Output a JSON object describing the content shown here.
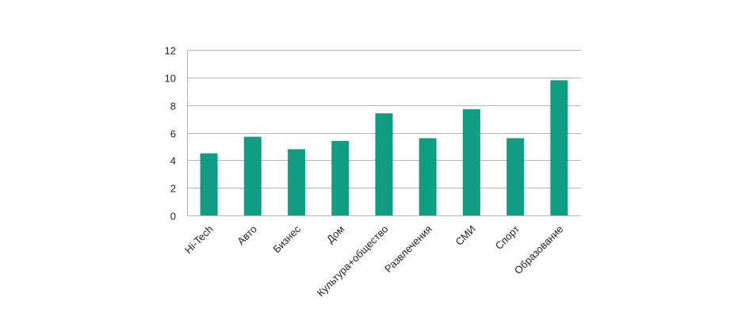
{
  "chart_data": {
    "type": "bar",
    "title": "",
    "xlabel": "",
    "ylabel": "",
    "categories": [
      "Hi-Tech",
      "Авто",
      "Бизнес",
      "Дом",
      "Культура+общество",
      "Развлечения",
      "СМИ",
      "Спорт",
      "Образование"
    ],
    "values": [
      4.5,
      5.7,
      4.8,
      5.4,
      7.4,
      5.6,
      7.7,
      5.6,
      9.8
    ],
    "ylim": [
      0,
      12
    ],
    "yticks": [
      0,
      2,
      4,
      6,
      8,
      10,
      12
    ],
    "ytick_labels": [
      "0",
      "2",
      "4",
      "6",
      "8",
      "10",
      "12"
    ],
    "grid": "horizontal",
    "legend": "none",
    "bar_color": "#109e82",
    "grid_color": "#b3b3b3"
  }
}
